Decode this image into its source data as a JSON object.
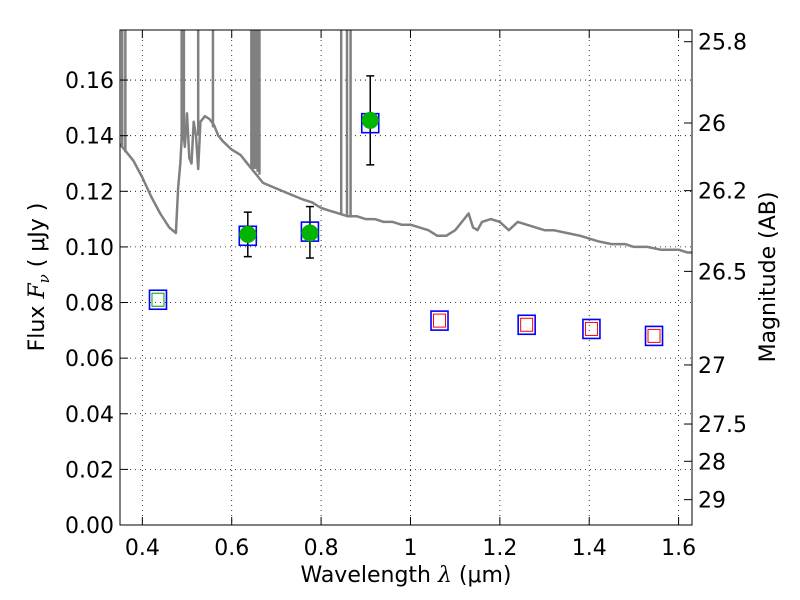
{
  "chart_data": {
    "type": "scatter",
    "xlabel": {
      "prefix": "Wavelength  ",
      "symbol": "λ",
      "suffix": " (μm)"
    },
    "ylabel": {
      "prefix": "Flux  ",
      "symbol": "F",
      "subscript": "ν",
      "suffix": "  ( μJy )"
    },
    "y2label": "Magnitude (AB)",
    "xlim": [
      0.35,
      1.63
    ],
    "ylim": [
      0.0,
      0.178
    ],
    "grid": true,
    "x_ticks": [
      {
        "value": 0.4,
        "label": "0.4"
      },
      {
        "value": 0.6,
        "label": "0.6"
      },
      {
        "value": 0.8,
        "label": "0.8"
      },
      {
        "value": 1.0,
        "label": "1"
      },
      {
        "value": 1.2,
        "label": "1.2"
      },
      {
        "value": 1.4,
        "label": "1.4"
      },
      {
        "value": 1.6,
        "label": "1.6"
      }
    ],
    "y_ticks": [
      {
        "value": 0.0,
        "label": "0.00"
      },
      {
        "value": 0.02,
        "label": "0.02"
      },
      {
        "value": 0.04,
        "label": "0.04"
      },
      {
        "value": 0.06,
        "label": "0.06"
      },
      {
        "value": 0.08,
        "label": "0.08"
      },
      {
        "value": 0.1,
        "label": "0.10"
      },
      {
        "value": 0.12,
        "label": "0.12"
      },
      {
        "value": 0.14,
        "label": "0.14"
      },
      {
        "value": 0.16,
        "label": "0.16"
      }
    ],
    "y2_ticks": [
      {
        "mag": 25.8,
        "label": "25.8"
      },
      {
        "mag": 26.0,
        "label": "26"
      },
      {
        "mag": 26.2,
        "label": "26.2"
      },
      {
        "mag": 26.5,
        "label": "26.5"
      },
      {
        "mag": 27.0,
        "label": "27"
      },
      {
        "mag": 27.5,
        "label": "27.5"
      },
      {
        "mag": 28.0,
        "label": "28"
      },
      {
        "mag": 29.0,
        "label": "29"
      }
    ],
    "observed_points": [
      {
        "x": 0.636,
        "y": 0.1045,
        "yerr_low": 0.0965,
        "yerr_high": 0.1125
      },
      {
        "x": 0.775,
        "y": 0.105,
        "yerr_low": 0.096,
        "yerr_high": 0.1145
      },
      {
        "x": 0.91,
        "y": 0.1455,
        "yerr_low": 0.1295,
        "yerr_high": 0.1615
      }
    ],
    "model_points_blue": [
      {
        "x": 0.435,
        "y": 0.081
      },
      {
        "x": 0.636,
        "y": 0.104
      },
      {
        "x": 0.775,
        "y": 0.1055
      },
      {
        "x": 0.91,
        "y": 0.1445
      },
      {
        "x": 1.065,
        "y": 0.0735
      },
      {
        "x": 1.26,
        "y": 0.072
      },
      {
        "x": 1.405,
        "y": 0.0705
      },
      {
        "x": 1.545,
        "y": 0.068
      }
    ],
    "model_points_red": [
      {
        "x": 1.065,
        "y": 0.0735
      },
      {
        "x": 1.26,
        "y": 0.072
      },
      {
        "x": 1.405,
        "y": 0.0705
      },
      {
        "x": 1.545,
        "y": 0.068
      }
    ],
    "model_points_green": [
      {
        "x": 0.435,
        "y": 0.081
      }
    ],
    "spectrum": [
      [
        0.35,
        0.137
      ],
      [
        0.36,
        0.135
      ],
      [
        0.38,
        0.131
      ],
      [
        0.4,
        0.125
      ],
      [
        0.42,
        0.118
      ],
      [
        0.44,
        0.112
      ],
      [
        0.46,
        0.107
      ],
      [
        0.475,
        0.105
      ],
      [
        0.48,
        0.121
      ],
      [
        0.485,
        0.13
      ],
      [
        0.49,
        0.145
      ],
      [
        0.495,
        0.136
      ],
      [
        0.5,
        0.148
      ],
      [
        0.505,
        0.132
      ],
      [
        0.51,
        0.13
      ],
      [
        0.515,
        0.145
      ],
      [
        0.52,
        0.14
      ],
      [
        0.525,
        0.128
      ],
      [
        0.53,
        0.145
      ],
      [
        0.54,
        0.147
      ],
      [
        0.55,
        0.146
      ],
      [
        0.56,
        0.144
      ],
      [
        0.57,
        0.14
      ],
      [
        0.58,
        0.138
      ],
      [
        0.6,
        0.135
      ],
      [
        0.62,
        0.133
      ],
      [
        0.63,
        0.131
      ],
      [
        0.64,
        0.129
      ],
      [
        0.65,
        0.127
      ],
      [
        0.67,
        0.123
      ],
      [
        0.7,
        0.121
      ],
      [
        0.73,
        0.119
      ],
      [
        0.76,
        0.117
      ],
      [
        0.78,
        0.116
      ],
      [
        0.8,
        0.114
      ],
      [
        0.82,
        0.113
      ],
      [
        0.84,
        0.112
      ],
      [
        0.86,
        0.111
      ],
      [
        0.88,
        0.111
      ],
      [
        0.9,
        0.11
      ],
      [
        0.92,
        0.11
      ],
      [
        0.94,
        0.109
      ],
      [
        0.96,
        0.109
      ],
      [
        0.98,
        0.108
      ],
      [
        1.0,
        0.108
      ],
      [
        1.02,
        0.107
      ],
      [
        1.04,
        0.106
      ],
      [
        1.06,
        0.104
      ],
      [
        1.08,
        0.104
      ],
      [
        1.1,
        0.106
      ],
      [
        1.12,
        0.11
      ],
      [
        1.13,
        0.112
      ],
      [
        1.14,
        0.107
      ],
      [
        1.15,
        0.106
      ],
      [
        1.16,
        0.109
      ],
      [
        1.18,
        0.11
      ],
      [
        1.2,
        0.109
      ],
      [
        1.22,
        0.106
      ],
      [
        1.24,
        0.109
      ],
      [
        1.26,
        0.108
      ],
      [
        1.28,
        0.107
      ],
      [
        1.3,
        0.106
      ],
      [
        1.32,
        0.106
      ],
      [
        1.35,
        0.105
      ],
      [
        1.38,
        0.104
      ],
      [
        1.4,
        0.103
      ],
      [
        1.42,
        0.102
      ],
      [
        1.45,
        0.101
      ],
      [
        1.48,
        0.101
      ],
      [
        1.5,
        0.1
      ],
      [
        1.53,
        0.1
      ],
      [
        1.56,
        0.099
      ],
      [
        1.58,
        0.099
      ],
      [
        1.6,
        0.099
      ],
      [
        1.62,
        0.098
      ],
      [
        1.63,
        0.098
      ]
    ],
    "spectrum_spikes": [
      {
        "x": 0.355,
        "top": 0.178,
        "base": 0.136
      },
      {
        "x": 0.362,
        "top": 0.178,
        "base": 0.134
      },
      {
        "x": 0.488,
        "top": 0.178,
        "base": 0.138
      },
      {
        "x": 0.493,
        "top": 0.178,
        "base": 0.14
      },
      {
        "x": 0.525,
        "top": 0.178,
        "base": 0.14
      },
      {
        "x": 0.558,
        "top": 0.178,
        "base": 0.143
      },
      {
        "x": 0.644,
        "top": 0.178,
        "base": 0.128
      },
      {
        "x": 0.649,
        "top": 0.178,
        "base": 0.128
      },
      {
        "x": 0.653,
        "top": 0.178,
        "base": 0.128
      },
      {
        "x": 0.658,
        "top": 0.178,
        "base": 0.127
      },
      {
        "x": 0.662,
        "top": 0.178,
        "base": 0.126
      },
      {
        "x": 0.845,
        "top": 0.178,
        "base": 0.112
      },
      {
        "x": 0.858,
        "top": 0.178,
        "base": 0.111
      },
      {
        "x": 0.866,
        "top": 0.178,
        "base": 0.111
      }
    ],
    "colors": {
      "spectrum": "#808080",
      "observed": "#00b400",
      "model_blue": "#0000ff",
      "model_red": "#ff0000",
      "model_green": "#00a000",
      "errorbar": "#000000",
      "grid": "#000000"
    }
  }
}
